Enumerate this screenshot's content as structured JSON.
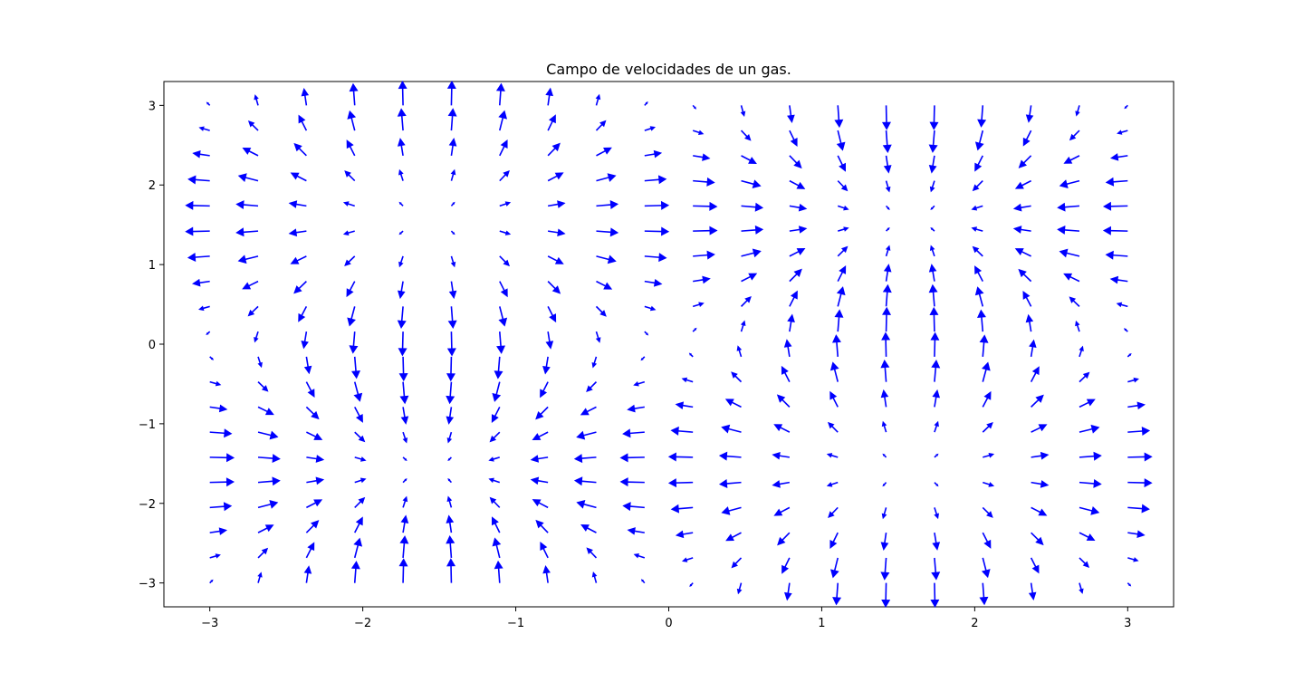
{
  "chart_data": {
    "type": "quiver",
    "title": "Campo de velocidades de un gas.",
    "xlabel": "",
    "ylabel": "",
    "xlim": [
      -3.3,
      3.3
    ],
    "ylim": [
      -3.3,
      3.3
    ],
    "x_ticks": [
      -3,
      -2,
      -1,
      0,
      1,
      2,
      3
    ],
    "y_ticks": [
      -3,
      -2,
      -1,
      0,
      1,
      2,
      3
    ],
    "x_tick_labels": [
      "−3",
      "−2",
      "−1",
      "0",
      "1",
      "2",
      "3"
    ],
    "y_tick_labels": [
      "−3",
      "−2",
      "−1",
      "0",
      "1",
      "2",
      "3"
    ],
    "grid": false,
    "arrow_color": "#0000ff",
    "grid_points": {
      "x_range": [
        -3,
        3
      ],
      "y_range": [
        -3,
        3
      ],
      "n": 20
    },
    "field": {
      "u": "cos(x) * sin(y)",
      "v": "sin(x) * cos(y)"
    }
  }
}
